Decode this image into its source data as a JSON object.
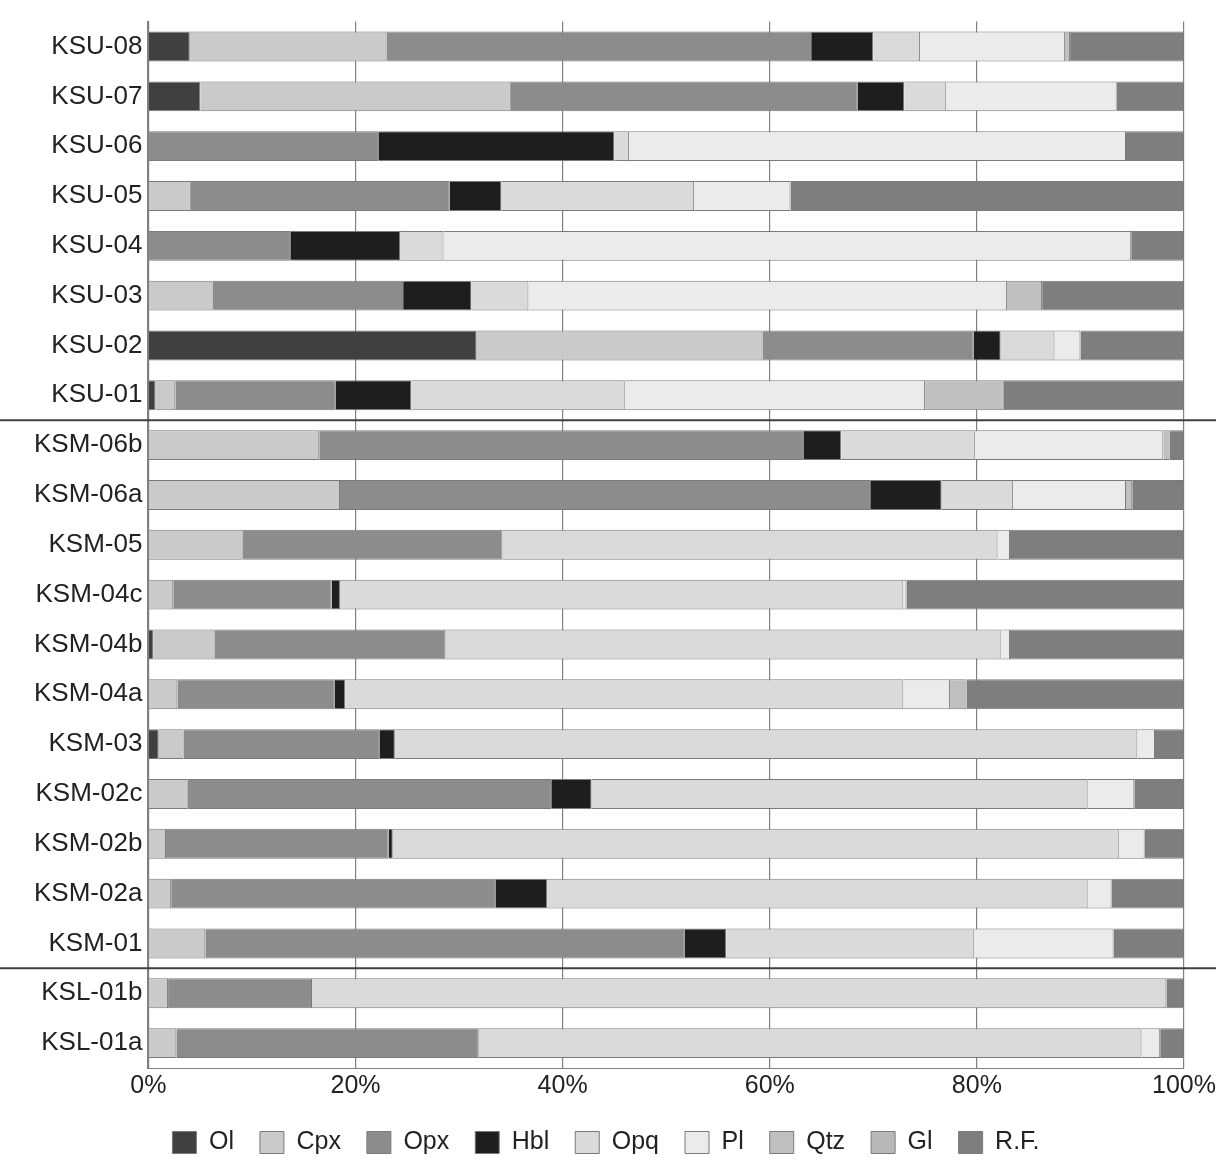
{
  "chart_data": {
    "type": "bar",
    "orientation": "horizontal",
    "stacked": true,
    "categories": [
      "KSU-08",
      "KSU-07",
      "KSU-06",
      "KSU-05",
      "KSU-04",
      "KSU-03",
      "KSU-02",
      "KSU-01",
      "KSM-06b",
      "KSM-06a",
      "KSM-05",
      "KSM-04c",
      "KSM-04b",
      "KSM-04a",
      "KSM-03",
      "KSM-02c",
      "KSM-02b",
      "KSM-02a",
      "KSM-01",
      "KSL-01b",
      "KSL-01a"
    ],
    "series": [
      {
        "name": "Ol",
        "color": "#404040",
        "values": [
          4,
          5,
          0,
          0,
          0,
          0,
          31.7,
          0.7,
          0,
          0,
          0,
          0,
          0.5,
          0,
          1,
          0,
          0,
          0,
          0,
          0,
          0
        ]
      },
      {
        "name": "Cpx",
        "color": "#cacaca",
        "values": [
          19,
          30,
          0,
          4.1,
          0,
          6.2,
          27.6,
          1.9,
          16.5,
          18.5,
          9.1,
          2.4,
          5.9,
          2.8,
          2.4,
          3.8,
          1.7,
          2.2,
          5.5,
          1.9,
          2.7
        ]
      },
      {
        "name": "Opx",
        "color": "#8c8c8c",
        "values": [
          41,
          33.5,
          22.2,
          25,
          13.7,
          18.4,
          20.4,
          15.5,
          46.8,
          51.2,
          25.1,
          15.3,
          22.3,
          15.2,
          18.9,
          35.1,
          21.5,
          31.3,
          46.3,
          13.9,
          29.2
        ]
      },
      {
        "name": "Hbl",
        "color": "#1e1e1e",
        "values": [
          6,
          4.5,
          22.8,
          5,
          10.6,
          6.6,
          2.6,
          7.3,
          3.6,
          6.9,
          0,
          0.8,
          0,
          1,
          1.5,
          3.9,
          0.4,
          5,
          4,
          0,
          0
        ]
      },
      {
        "name": "Opq",
        "color": "#dadada",
        "values": [
          4.5,
          4,
          1.4,
          18.6,
          4.2,
          5.5,
          5.2,
          20.6,
          12.9,
          6.9,
          47.8,
          54.4,
          53.6,
          53.9,
          71.7,
          47.9,
          70.1,
          52.2,
          23.9,
          82.5,
          64
        ]
      },
      {
        "name": "Pl",
        "color": "#ebebeb",
        "values": [
          14,
          16.5,
          48,
          9.3,
          66.4,
          46.2,
          2.5,
          29,
          18.2,
          10.9,
          1.2,
          0.3,
          0.9,
          4.5,
          1.7,
          4.5,
          2.5,
          2.3,
          13.5,
          0,
          1.8
        ]
      },
      {
        "name": "Qtz",
        "color": "#c0c0c0",
        "values": [
          0.5,
          0,
          0,
          0,
          0,
          3.4,
          0,
          7.6,
          0.6,
          0.6,
          0,
          0,
          0,
          1.6,
          0,
          0,
          0,
          0,
          0,
          0,
          0
        ]
      },
      {
        "name": "Gl",
        "color": "#b8b8b8",
        "values": [
          0,
          0,
          0,
          0,
          0,
          0,
          0,
          0,
          0,
          0,
          0,
          0,
          0,
          0,
          0,
          0,
          0,
          0,
          0,
          0,
          0
        ]
      },
      {
        "name": "R.F.",
        "color": "#7e7e7e",
        "values": [
          11,
          6.5,
          5.6,
          38,
          5.1,
          13.7,
          10,
          17.4,
          1.4,
          5,
          16.8,
          26.8,
          16.8,
          21,
          2.8,
          4.8,
          3.8,
          7,
          6.8,
          1.7,
          2.3
        ]
      }
    ],
    "xlim": [
      0,
      100
    ],
    "xticks": [
      {
        "value": 0,
        "label": "0%"
      },
      {
        "value": 20,
        "label": "20%"
      },
      {
        "value": 40,
        "label": "40%"
      },
      {
        "value": 60,
        "label": "60%"
      },
      {
        "value": 80,
        "label": "80%"
      },
      {
        "value": 100,
        "label": "100%"
      }
    ],
    "grid": "x",
    "legend": "bottom"
  }
}
